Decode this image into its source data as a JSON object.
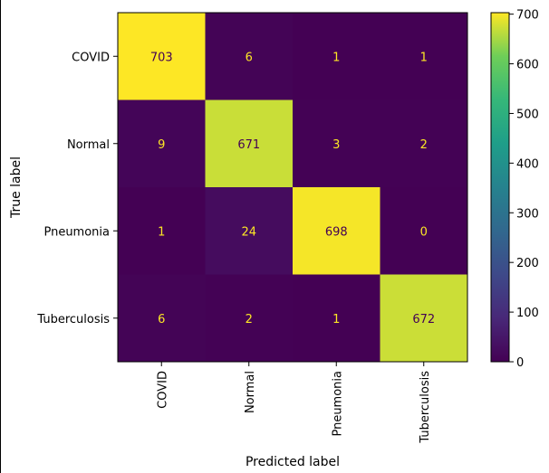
{
  "chart_data": {
    "type": "heatmap",
    "title": "",
    "xlabel": "Predicted label",
    "ylabel": "True label",
    "x_categories": [
      "COVID",
      "Normal",
      "Pneumonia",
      "Tuberculosis"
    ],
    "y_categories": [
      "COVID",
      "Normal",
      "Pneumonia",
      "Tuberculosis"
    ],
    "values": [
      [
        703,
        6,
        1,
        1
      ],
      [
        9,
        671,
        3,
        2
      ],
      [
        1,
        24,
        698,
        0
      ],
      [
        6,
        2,
        1,
        672
      ]
    ],
    "colorbar": {
      "vmin": 0,
      "vmax": 703,
      "ticks": [
        "0",
        "100",
        "200",
        "300",
        "400",
        "500",
        "600",
        "700"
      ],
      "colormap": "viridis"
    },
    "annotation_colors": {
      "on_dark": "#fde725",
      "on_light": "#440154"
    },
    "grid": false
  }
}
